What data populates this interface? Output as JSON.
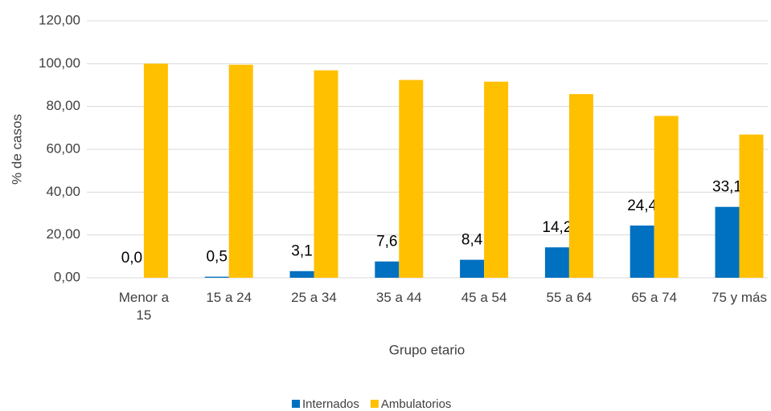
{
  "chart_data": {
    "type": "bar",
    "x_label": "Grupo etario",
    "y_label": "% de casos",
    "categories": [
      "Menor a 15",
      "15 a 24",
      "25 a 34",
      "35 a 44",
      "45 a 54",
      "55 a 64",
      "65 a 74",
      "75 y más"
    ],
    "series": [
      {
        "name": "Internados",
        "color": "#0070c0",
        "values": [
          0.0,
          0.5,
          3.1,
          7.6,
          8.4,
          14.2,
          24.4,
          33.1
        ],
        "value_labels": [
          "0,0",
          "0,5",
          "3,1",
          "7,6",
          "8,4",
          "14,2",
          "24,4",
          "33,1"
        ]
      },
      {
        "name": "Ambulatorios",
        "color": "#ffc000",
        "values": [
          100.0,
          99.5,
          96.9,
          92.4,
          91.6,
          85.8,
          75.6,
          66.9
        ]
      }
    ],
    "ylim": [
      0,
      120
    ],
    "yticks": [
      {
        "value": 0,
        "label": "0,00"
      },
      {
        "value": 20,
        "label": "20,00"
      },
      {
        "value": 40,
        "label": "40,00"
      },
      {
        "value": 60,
        "label": "60,00"
      },
      {
        "value": 80,
        "label": "80,00"
      },
      {
        "value": 100,
        "label": "100,00"
      },
      {
        "value": 120,
        "label": "120,00"
      }
    ],
    "grid": true,
    "legend": "bottom"
  }
}
